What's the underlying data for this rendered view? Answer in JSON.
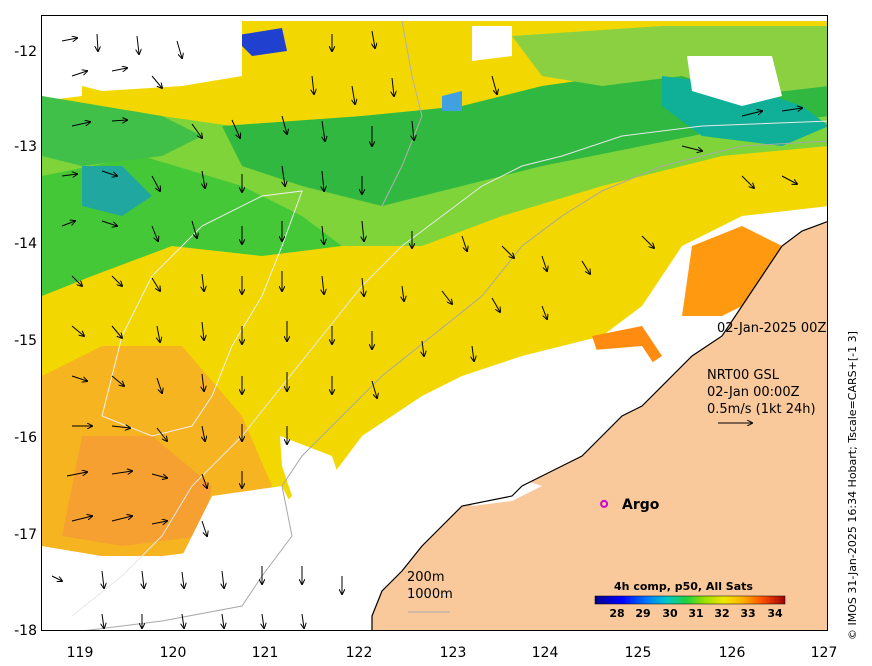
{
  "map": {
    "y_ticks": [
      "-12",
      "-13",
      "-14",
      "-15",
      "-16",
      "-17",
      "-18"
    ],
    "x_ticks": [
      "119",
      "120",
      "121",
      "122",
      "123",
      "124",
      "125",
      "126",
      "127"
    ],
    "lon_range": [
      118.6,
      127.0
    ],
    "lat_range": [
      -18.0,
      -11.75
    ],
    "land_color": "#f9c89b",
    "no_data_color": "#ffffff"
  },
  "annotations": {
    "date_label": "02-Jan-2025 00Z",
    "product_line1": "NRT00 GSL",
    "product_line2": "02-Jan 00:00Z",
    "scale_label": "0.5m/s (1kt 24h)",
    "contour_200": "200m",
    "contour_1000": "1000m",
    "credit": "© IMOS 31-Jan-2025 16:34 Hobart; Tscale=CARS+[-1 3]"
  },
  "argo": {
    "label": "Argo",
    "lon": 124.6,
    "lat": -16.7,
    "marker_color": "#d000d0"
  },
  "colorbar": {
    "title": "4h comp, p50, All Sats",
    "ticks": [
      "28",
      "29",
      "30",
      "31",
      "32",
      "33",
      "34"
    ],
    "colors": [
      "#00008b",
      "#0000ff",
      "#0080ff",
      "#00c0c0",
      "#00d080",
      "#30d030",
      "#a0e000",
      "#e8e800",
      "#ffc000",
      "#ff8000",
      "#ff3000",
      "#b00000"
    ]
  }
}
